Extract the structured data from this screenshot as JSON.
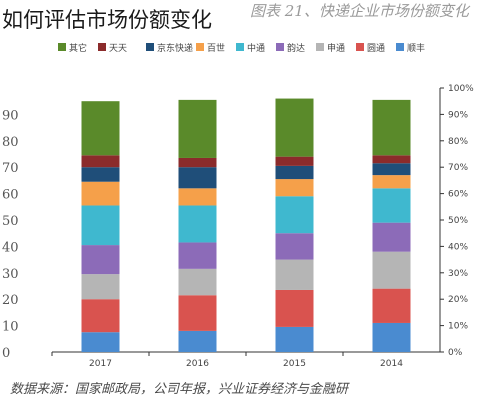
{
  "title": "如何评估市场份额变化",
  "header_text": "图表 21、快递企业市场份额变化",
  "footer_text": "数据来源：国家邮政局，公司年报，兴业证券经济与金融研",
  "chart_data": {
    "type": "bar",
    "stacked": true,
    "horizontal": false,
    "categories": [
      "2017",
      "2016",
      "2015",
      "2014"
    ],
    "ylim": [
      0,
      100
    ],
    "y_ticks": [
      "0%",
      "10%",
      "20%",
      "30%",
      "40%",
      "50%",
      "60%",
      "70%",
      "80%",
      "90%",
      "100%"
    ],
    "left_tick_stubs": [
      "0",
      "10",
      "20",
      "30",
      "40",
      "50",
      "60",
      "70",
      "80",
      "90"
    ],
    "legend_position": "top",
    "series": [
      {
        "name": "顺丰",
        "color": "#4a8bd0",
        "values": [
          7.5,
          8,
          9.5,
          11
        ]
      },
      {
        "name": "圆通",
        "color": "#d9534f",
        "values": [
          12.5,
          13.5,
          14,
          13
        ]
      },
      {
        "name": "申通",
        "color": "#b5b5b5",
        "values": [
          9.5,
          10,
          11.5,
          14
        ]
      },
      {
        "name": "韵达",
        "color": "#8c6bb8",
        "values": [
          11,
          10,
          10,
          11
        ]
      },
      {
        "name": "中通",
        "color": "#3fb8cf",
        "values": [
          15,
          14,
          14,
          13
        ]
      },
      {
        "name": "百世",
        "color": "#f5a04a",
        "values": [
          9,
          6.5,
          6.5,
          5
        ]
      },
      {
        "name": "京东快递",
        "color": "#1f4e79",
        "values": [
          5.5,
          8,
          5,
          4.5
        ]
      },
      {
        "name": "天天",
        "color": "#8b2b2b",
        "values": [
          4.5,
          3.5,
          3.5,
          3
        ]
      },
      {
        "name": "其它",
        "color": "#5a8a2a",
        "values": [
          20.5,
          22,
          22,
          21
        ]
      }
    ]
  }
}
